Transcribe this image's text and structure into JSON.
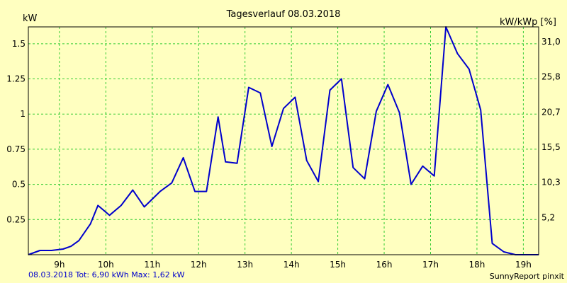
{
  "chart_data": {
    "type": "line",
    "title": "Tagesverlauf 08.03.2018",
    "left_unit": "kW",
    "right_unit": "kW/kWp [%]",
    "grid": true,
    "colors": {
      "background": "#ffffc0",
      "grid": "#33cc33",
      "line": "#0000cc",
      "frame": "#000000"
    },
    "xlim": [
      8.33,
      19.33
    ],
    "ylim": [
      0,
      1.62
    ],
    "x_ticks": [
      {
        "value": 9,
        "label": "9h"
      },
      {
        "value": 10,
        "label": "10h"
      },
      {
        "value": 11,
        "label": "11h"
      },
      {
        "value": 12,
        "label": "12h"
      },
      {
        "value": 13,
        "label": "13h"
      },
      {
        "value": 14,
        "label": "14h"
      },
      {
        "value": 15,
        "label": "15h"
      },
      {
        "value": 16,
        "label": "16h"
      },
      {
        "value": 17,
        "label": "17h"
      },
      {
        "value": 18,
        "label": "18h"
      },
      {
        "value": 19,
        "label": "19h"
      }
    ],
    "y_ticks": [
      {
        "value": 0.25,
        "label": "0.25"
      },
      {
        "value": 0.5,
        "label": "0.5"
      },
      {
        "value": 0.75,
        "label": "0.75"
      },
      {
        "value": 1,
        "label": "1"
      },
      {
        "value": 1.25,
        "label": "1.25"
      },
      {
        "value": 1.5,
        "label": "1.5"
      }
    ],
    "y2_ticks": [
      {
        "value": 0.265,
        "label": "5,2"
      },
      {
        "value": 0.515,
        "label": "10,3"
      },
      {
        "value": 0.765,
        "label": "15,5"
      },
      {
        "value": 1.015,
        "label": "20,7"
      },
      {
        "value": 1.265,
        "label": "25,8"
      },
      {
        "value": 1.515,
        "label": "31,0"
      }
    ],
    "series": [
      {
        "x": [
          8.33,
          8.58,
          8.83,
          9.08,
          9.25,
          9.42,
          9.67,
          9.83,
          10.08,
          10.33,
          10.58,
          10.83,
          11.17,
          11.42,
          11.67,
          11.92,
          12.17,
          12.42,
          12.58,
          12.83,
          13.08,
          13.33,
          13.58,
          13.83,
          14.08,
          14.33,
          14.58,
          14.83,
          15.08,
          15.33,
          15.58,
          15.83,
          16.08,
          16.33,
          16.58,
          16.83,
          17.08,
          17.33,
          17.58,
          17.83,
          18.08,
          18.33,
          18.58,
          18.83,
          19.08,
          19.33
        ],
        "values": [
          0.0,
          0.03,
          0.03,
          0.04,
          0.06,
          0.1,
          0.22,
          0.35,
          0.28,
          0.35,
          0.46,
          0.34,
          0.45,
          0.51,
          0.69,
          0.45,
          0.45,
          0.98,
          0.66,
          0.65,
          1.19,
          1.15,
          0.77,
          1.04,
          1.12,
          0.67,
          0.52,
          1.17,
          1.25,
          0.62,
          0.54,
          1.02,
          1.21,
          1.01,
          0.5,
          0.63,
          0.56,
          1.62,
          1.43,
          1.32,
          1.03,
          0.08,
          0.02,
          0.0,
          0.0,
          0.0
        ]
      }
    ],
    "footer_left": "08.03.2018 Tot: 6,90 kWh Max: 1,62 kW",
    "footer_right": "SunnyReport pinxit"
  }
}
